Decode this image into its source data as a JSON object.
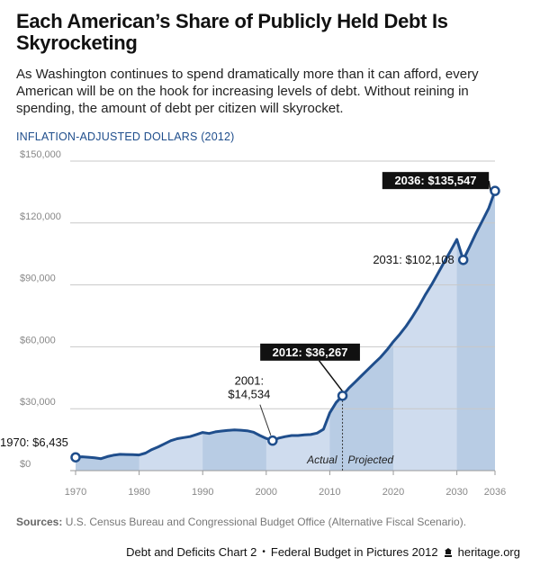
{
  "header": {
    "title": "Each American’s Share of Publicly Held Debt Is Skyrocketing",
    "subtitle": "As Washington continues to spend dramatically more than it can afford, every American will be on the hook for increasing levels of debt. Without reining in spending, the amount of debt per citizen will skyrocket.",
    "units": "INFLATION-ADJUSTED DOLLARS (2012)"
  },
  "chart_data": {
    "type": "area",
    "title": "",
    "xlabel": "",
    "ylabel": "",
    "xlim": [
      1970,
      2036
    ],
    "ylim": [
      0,
      150000
    ],
    "x_ticks": [
      "1970",
      "1980",
      "1990",
      "2000",
      "2010",
      "2020",
      "2030",
      "2036"
    ],
    "x_tick_values": [
      1970,
      1980,
      1990,
      2000,
      2010,
      2020,
      2030,
      2036
    ],
    "y_ticks": [
      "$0",
      "$30,000",
      "$60,000",
      "$90,000",
      "$120,000",
      "$150,000"
    ],
    "y_tick_values": [
      0,
      30000,
      60000,
      90000,
      120000,
      150000
    ],
    "grid": "horizontal",
    "colors": {
      "line": "#1f4e8c",
      "fill": "#cfdcee",
      "fill_alt": "#b8cce4",
      "grid": "#c8c8c8"
    },
    "series": [
      {
        "x": [
          1970,
          1971,
          1972,
          1973,
          1974,
          1975,
          1976,
          1977,
          1978,
          1979,
          1980,
          1981,
          1982,
          1983,
          1984,
          1985,
          1986,
          1987,
          1988,
          1989,
          1990,
          1991,
          1992,
          1993,
          1994,
          1995,
          1996,
          1997,
          1998,
          1999,
          2000,
          2001,
          2002,
          2003,
          2004,
          2005,
          2006,
          2007,
          2008,
          2009,
          2010,
          2011,
          2012,
          2013,
          2014,
          2015,
          2016,
          2017,
          2018,
          2019,
          2020,
          2021,
          2022,
          2023,
          2024,
          2025,
          2026,
          2027,
          2028,
          2029,
          2030,
          2031,
          2032,
          2033,
          2034,
          2035,
          2036
        ],
        "y": [
          6435,
          6700,
          6500,
          6200,
          5800,
          6800,
          7500,
          7900,
          7800,
          7700,
          7600,
          8500,
          10200,
          11500,
          13000,
          14500,
          15500,
          16000,
          16500,
          17500,
          18500,
          18000,
          18800,
          19200,
          19500,
          19700,
          19600,
          19300,
          18600,
          17000,
          15600,
          14534,
          15800,
          16500,
          17000,
          17000,
          17300,
          17500,
          18200,
          20000,
          28000,
          33000,
          36267,
          40000,
          43000,
          46000,
          49000,
          52000,
          55000,
          58500,
          62500,
          66000,
          70000,
          74500,
          79500,
          85000,
          90000,
          95500,
          101000,
          106500,
          112000,
          102108,
          108500,
          115000,
          121000,
          127000,
          135547
        ]
      }
    ],
    "region_bands": [
      [
        1970,
        1980
      ],
      [
        1990,
        2000
      ],
      [
        2010,
        2020
      ],
      [
        2030,
        2036
      ]
    ],
    "divider_year": 2012,
    "divider_labels": {
      "left": "Actual",
      "right": "Projected"
    },
    "annotations": [
      {
        "label": "1970: $6,435",
        "year": 1970,
        "value": 6435,
        "marker": true,
        "style": "plain"
      },
      {
        "label": "2001:",
        "label2": "$14,534",
        "year": 2001,
        "value": 14534,
        "marker": true,
        "style": "plain"
      },
      {
        "label": "2012: $36,267",
        "year": 2012,
        "value": 36267,
        "marker": true,
        "style": "boxed"
      },
      {
        "label": "2031: $102,108",
        "year": 2031,
        "value": 102108,
        "marker": true,
        "style": "plain"
      },
      {
        "label": "2036: $135,547",
        "year": 2036,
        "value": 135547,
        "marker": true,
        "style": "boxed"
      }
    ]
  },
  "sources": {
    "label": "Sources:",
    "text": "U.S. Census Bureau and Congressional Budget Office (Alternative Fiscal Scenario)."
  },
  "footer": {
    "chart_label": "Debt and Deficits Chart 2",
    "bullet": "•",
    "publication": "Federal Budget in Pictures 2012",
    "logo_icon": "lamp-icon",
    "site": "heritage.org"
  }
}
